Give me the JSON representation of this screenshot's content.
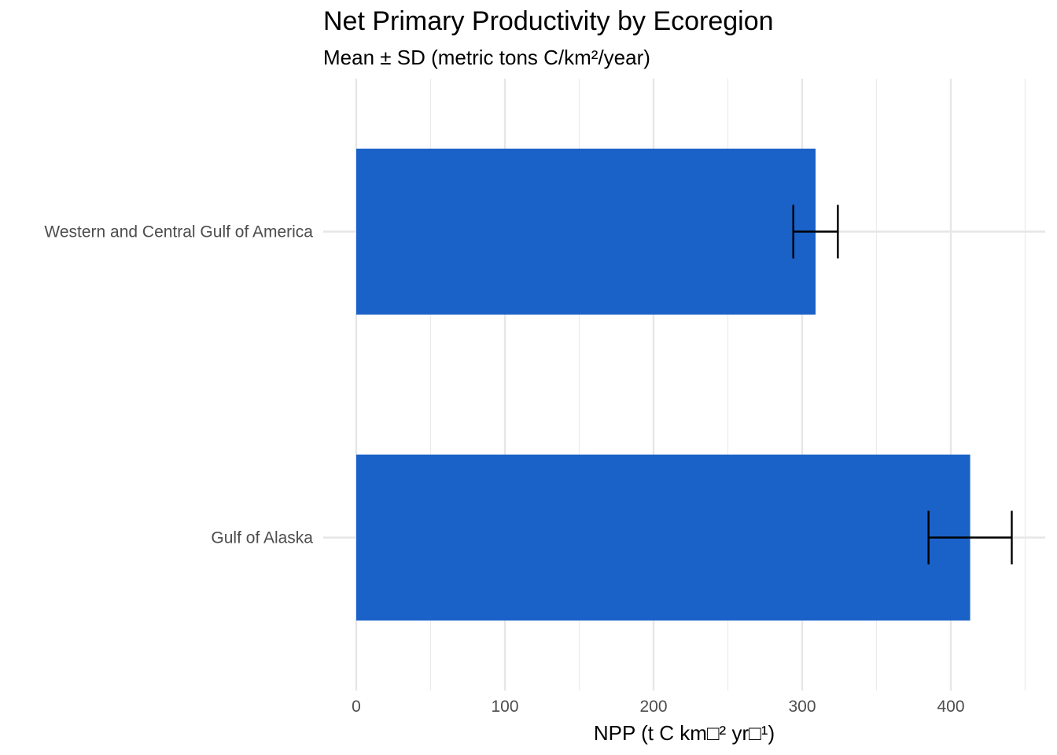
{
  "chart_data": {
    "type": "bar",
    "orientation": "horizontal",
    "title": "Net Primary Productivity by Ecoregion",
    "subtitle": "Mean ± SD (metric tons C/km²/year)",
    "xlabel": "NPP (t C km□² yr□¹)",
    "ylabel": "",
    "categories": [
      "Western and Central Gulf of America",
      "Gulf of Alaska"
    ],
    "values": [
      309,
      413
    ],
    "error_sd": [
      15,
      28
    ],
    "xlim": [
      0,
      460
    ],
    "xticks": [
      0,
      100,
      200,
      300,
      400
    ],
    "grid": true,
    "bar_color": "#1a61c8",
    "errorbar_color": "#000000"
  }
}
